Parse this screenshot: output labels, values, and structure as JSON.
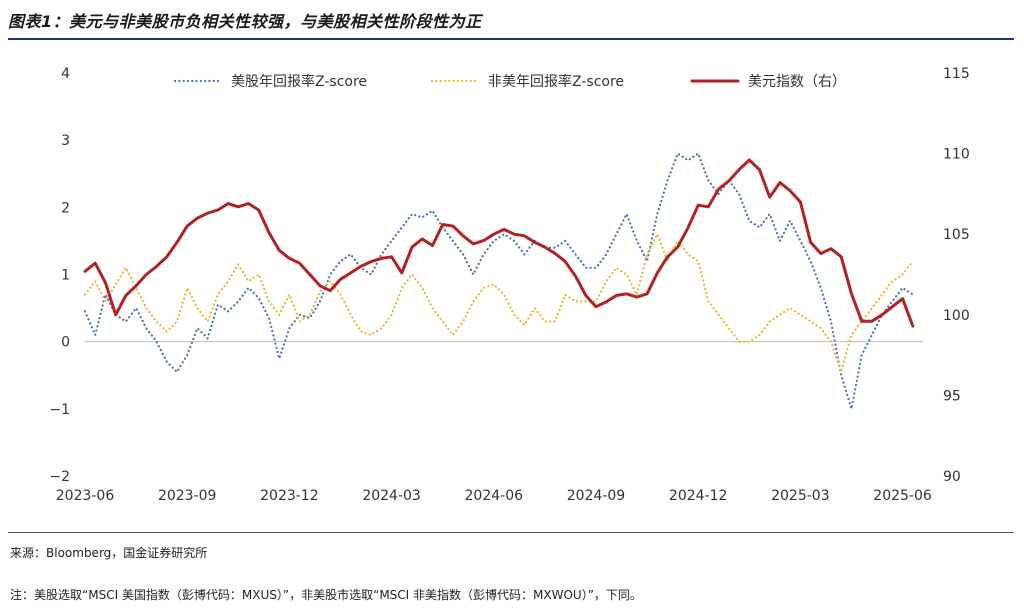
{
  "title": "图表1：美元与非美股市负相关性较强，与美股相关性阶段性为正",
  "source": "来源：Bloomberg，国金证券研究所",
  "note": "注：美股选取“MSCI 美国指数（彭博代码：MXUS）”，非美股市选取“MSCI 非美指数（彭博代码：MXWOU）”，下同。",
  "colors": {
    "us": "#4a72b8",
    "nonus": "#f0b828",
    "usd": "#b22222",
    "rule": "#1f3a6e"
  },
  "chart_data": {
    "type": "line",
    "x_labels": [
      "2023-06",
      "2023-09",
      "2023-12",
      "2024-03",
      "2024-06",
      "2024-09",
      "2024-12",
      "2025-03",
      "2025-06"
    ],
    "y_left_ticks": [
      "4",
      "3",
      "2",
      "1",
      "0",
      "−1",
      "−2"
    ],
    "y_right_ticks": [
      "115",
      "110",
      "105",
      "100",
      "95",
      "90"
    ],
    "ylim_left": [
      -2,
      4
    ],
    "ylim_right": [
      90,
      115
    ],
    "x_range": [
      0,
      24.6
    ],
    "legend_position": "top",
    "grid": false,
    "series": [
      {
        "name": "美股年回报率Z-score",
        "axis": "left",
        "style": "dotted",
        "color": "#4a72b8",
        "x": [
          0,
          0.3,
          0.6,
          0.9,
          1.2,
          1.5,
          1.8,
          2.1,
          2.4,
          2.7,
          3.0,
          3.3,
          3.6,
          3.9,
          4.2,
          4.5,
          4.8,
          5.1,
          5.4,
          5.7,
          6.0,
          6.3,
          6.6,
          6.9,
          7.2,
          7.5,
          7.8,
          8.1,
          8.4,
          8.7,
          9.0,
          9.3,
          9.6,
          9.9,
          10.2,
          10.5,
          10.8,
          11.1,
          11.4,
          11.7,
          12.0,
          12.3,
          12.6,
          12.9,
          13.2,
          13.5,
          13.8,
          14.1,
          14.4,
          14.7,
          15.0,
          15.3,
          15.6,
          15.9,
          16.2,
          16.5,
          16.8,
          17.1,
          17.4,
          17.7,
          18.0,
          18.3,
          18.6,
          18.9,
          19.2,
          19.5,
          19.8,
          20.1,
          20.4,
          20.7,
          21.0,
          21.3,
          21.6,
          21.9,
          22.2,
          22.5,
          22.8,
          23.1,
          23.4,
          23.7,
          24.0,
          24.3
        ],
        "values": [
          0.45,
          0.1,
          0.7,
          0.4,
          0.3,
          0.5,
          0.2,
          0.0,
          -0.3,
          -0.45,
          -0.2,
          0.2,
          0.05,
          0.55,
          0.45,
          0.6,
          0.8,
          0.65,
          0.35,
          -0.25,
          0.2,
          0.4,
          0.35,
          0.6,
          1.0,
          1.2,
          1.3,
          1.1,
          1.0,
          1.3,
          1.5,
          1.7,
          1.9,
          1.85,
          1.95,
          1.7,
          1.5,
          1.3,
          1.0,
          1.3,
          1.5,
          1.6,
          1.5,
          1.3,
          1.5,
          1.4,
          1.4,
          1.5,
          1.3,
          1.1,
          1.1,
          1.3,
          1.6,
          1.9,
          1.5,
          1.2,
          1.9,
          2.4,
          2.8,
          2.7,
          2.8,
          2.4,
          2.2,
          2.4,
          2.2,
          1.8,
          1.7,
          1.9,
          1.5,
          1.8,
          1.5,
          1.2,
          0.8,
          0.3,
          -0.5,
          -1.0,
          -0.2,
          0.1,
          0.4,
          0.6,
          0.8,
          0.7
        ]
      },
      {
        "name": "非美年回报率Z-score",
        "axis": "left",
        "style": "dotted",
        "color": "#f0b828",
        "x": [
          0,
          0.3,
          0.6,
          0.9,
          1.2,
          1.5,
          1.8,
          2.1,
          2.4,
          2.7,
          3.0,
          3.3,
          3.6,
          3.9,
          4.2,
          4.5,
          4.8,
          5.1,
          5.4,
          5.7,
          6.0,
          6.3,
          6.6,
          6.9,
          7.2,
          7.5,
          7.8,
          8.1,
          8.4,
          8.7,
          9.0,
          9.3,
          9.6,
          9.9,
          10.2,
          10.5,
          10.8,
          11.1,
          11.4,
          11.7,
          12.0,
          12.3,
          12.6,
          12.9,
          13.2,
          13.5,
          13.8,
          14.1,
          14.4,
          14.7,
          15.0,
          15.3,
          15.6,
          15.9,
          16.2,
          16.5,
          16.8,
          17.1,
          17.4,
          17.7,
          18.0,
          18.3,
          18.6,
          18.9,
          19.2,
          19.5,
          19.8,
          20.1,
          20.4,
          20.7,
          21.0,
          21.3,
          21.6,
          21.9,
          22.2,
          22.5,
          22.8,
          23.1,
          23.4,
          23.7,
          24.0,
          24.3
        ],
        "values": [
          0.7,
          0.9,
          0.6,
          0.85,
          1.1,
          0.8,
          0.5,
          0.3,
          0.15,
          0.3,
          0.8,
          0.5,
          0.3,
          0.7,
          0.9,
          1.15,
          0.9,
          1.0,
          0.6,
          0.4,
          0.7,
          0.3,
          0.4,
          0.75,
          0.9,
          0.7,
          0.4,
          0.15,
          0.1,
          0.2,
          0.4,
          0.8,
          1.0,
          0.8,
          0.5,
          0.3,
          0.1,
          0.3,
          0.6,
          0.8,
          0.85,
          0.7,
          0.4,
          0.25,
          0.5,
          0.3,
          0.3,
          0.7,
          0.6,
          0.6,
          0.6,
          0.9,
          1.1,
          1.0,
          0.7,
          1.3,
          1.6,
          1.2,
          1.5,
          1.3,
          1.2,
          0.6,
          0.4,
          0.2,
          0.0,
          0.0,
          0.1,
          0.3,
          0.4,
          0.5,
          0.4,
          0.3,
          0.2,
          0.0,
          -0.45,
          0.1,
          0.3,
          0.5,
          0.7,
          0.9,
          1.0,
          1.2
        ]
      },
      {
        "name": "美元指数（右）",
        "axis": "right",
        "style": "solid",
        "color": "#b22222",
        "x": [
          0,
          0.3,
          0.6,
          0.9,
          1.2,
          1.5,
          1.8,
          2.1,
          2.4,
          2.7,
          3.0,
          3.3,
          3.6,
          3.9,
          4.2,
          4.5,
          4.8,
          5.1,
          5.4,
          5.7,
          6.0,
          6.3,
          6.6,
          6.9,
          7.2,
          7.5,
          7.8,
          8.1,
          8.4,
          8.7,
          9.0,
          9.3,
          9.6,
          9.9,
          10.2,
          10.5,
          10.8,
          11.1,
          11.4,
          11.7,
          12.0,
          12.3,
          12.6,
          12.9,
          13.2,
          13.5,
          13.8,
          14.1,
          14.4,
          14.7,
          15.0,
          15.3,
          15.6,
          15.9,
          16.2,
          16.5,
          16.8,
          17.1,
          17.4,
          17.7,
          18.0,
          18.3,
          18.6,
          18.9,
          19.2,
          19.5,
          19.8,
          20.1,
          20.4,
          20.7,
          21.0,
          21.3,
          21.6,
          21.9,
          22.2,
          22.5,
          22.8,
          23.1,
          23.4,
          23.7,
          24.0,
          24.3
        ],
        "values": [
          102.7,
          103.2,
          102.0,
          100.0,
          101.2,
          101.8,
          102.5,
          103.0,
          103.6,
          104.5,
          105.5,
          106.0,
          106.3,
          106.5,
          106.9,
          106.7,
          106.9,
          106.5,
          105.1,
          104.0,
          103.5,
          103.2,
          102.5,
          101.8,
          101.5,
          102.2,
          102.6,
          103.0,
          103.3,
          103.5,
          103.6,
          102.6,
          104.2,
          104.7,
          104.3,
          105.6,
          105.5,
          104.9,
          104.4,
          104.6,
          105.0,
          105.3,
          105.0,
          104.9,
          104.5,
          104.2,
          103.8,
          103.3,
          102.4,
          101.2,
          100.5,
          100.8,
          101.2,
          101.3,
          101.1,
          101.3,
          102.6,
          103.6,
          104.2,
          105.4,
          106.8,
          106.7,
          107.8,
          108.3,
          109.0,
          109.6,
          109.0,
          107.3,
          108.2,
          107.7,
          107.0,
          104.5,
          103.8,
          104.1,
          103.6,
          101.3,
          99.6,
          99.6,
          100.0,
          100.5,
          101.0,
          99.3
        ]
      }
    ]
  }
}
